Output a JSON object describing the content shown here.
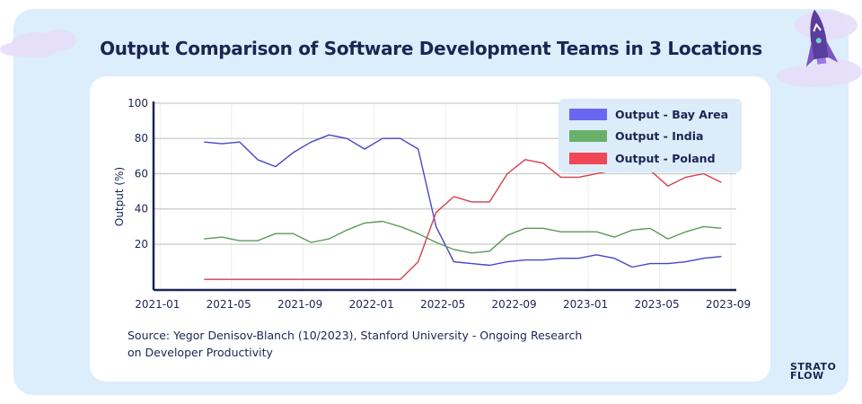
{
  "title": "Output Comparison of Software Development Teams in 3 Locations",
  "source": "Source: Yegor Denisov-Blanch (10/2023), Stanford University - Ongoing Research on Developer Productivity",
  "logo": {
    "line1": "STRATO",
    "line2": "FLOW"
  },
  "colors": {
    "bay_area": "#4a44c8",
    "india": "#5a9a58",
    "poland": "#d43f4f",
    "title": "#1b2553",
    "panel": "#dcedfb"
  },
  "chart_data": {
    "type": "line",
    "title": "",
    "xlabel": "",
    "ylabel": "Output (%)",
    "ylim": [
      -6,
      100
    ],
    "xlim": [
      "2020-12-20",
      "2023-09-10"
    ],
    "grid": true,
    "legend_position": "top-right",
    "y_ticks": [
      20,
      40,
      60,
      80,
      100
    ],
    "x_ticks": [
      "2021-01",
      "2021-05",
      "2021-09",
      "2022-01",
      "2022-05",
      "2022-09",
      "2023-01",
      "2023-05",
      "2023-09"
    ],
    "x": [
      "2021-03",
      "2021-04",
      "2021-05",
      "2021-06",
      "2021-07",
      "2021-08",
      "2021-09",
      "2021-10",
      "2021-11",
      "2021-12",
      "2022-01",
      "2022-02",
      "2022-03",
      "2022-04",
      "2022-05",
      "2022-06",
      "2022-07",
      "2022-08",
      "2022-09",
      "2022-10",
      "2022-11",
      "2022-12",
      "2023-01",
      "2023-02",
      "2023-03",
      "2023-04",
      "2023-05",
      "2023-06",
      "2023-07",
      "2023-08"
    ],
    "series": [
      {
        "name": "Output - Bay Area",
        "color": "#6b66f0",
        "values": [
          78,
          77,
          78,
          68,
          64,
          72,
          78,
          82,
          80,
          74,
          80,
          80,
          74,
          30,
          10,
          9,
          8,
          10,
          11,
          11,
          12,
          12,
          14,
          12,
          7,
          9,
          9,
          10,
          12,
          13
        ]
      },
      {
        "name": "Output - India",
        "color": "#6ab06a",
        "values": [
          23,
          24,
          22,
          22,
          26,
          26,
          21,
          23,
          28,
          32,
          33,
          30,
          26,
          21,
          17,
          15,
          16,
          25,
          29,
          29,
          27,
          27,
          27,
          24,
          28,
          29,
          23,
          27,
          30,
          29
        ]
      },
      {
        "name": "Output - Poland",
        "color": "#f04656",
        "values": [
          0,
          0,
          0,
          0,
          0,
          0,
          0,
          0,
          0,
          0,
          0,
          0,
          10,
          38,
          47,
          44,
          44,
          60,
          68,
          66,
          58,
          58,
          60,
          62,
          62,
          62,
          53,
          58,
          60,
          55
        ]
      }
    ]
  }
}
